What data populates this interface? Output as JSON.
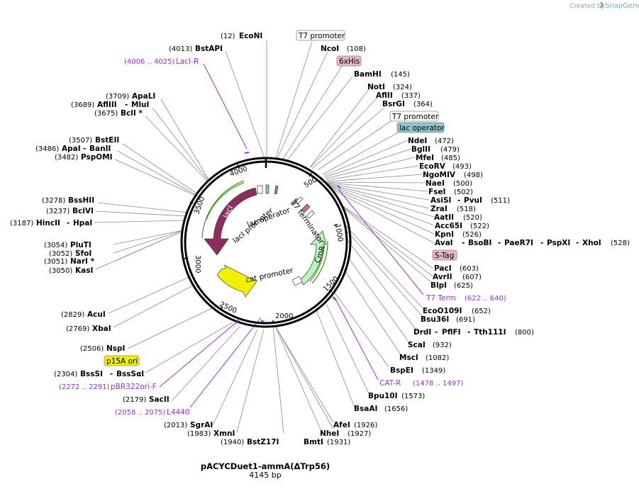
{
  "credit": {
    "created_by": "Created by",
    "brand": "SnapGene"
  },
  "plasmid": {
    "name": "pACYCDuet1-ammA(ΔTrp56)",
    "length": "4145 bp",
    "total_bp": 4145
  },
  "ticks": [
    "500",
    "1000",
    "1500",
    "2000",
    "2500",
    "3000",
    "3500",
    "4000"
  ],
  "features": {
    "lacI": "lacI",
    "cmr": "CmR",
    "lacI_promoter": "lacI promoter",
    "lac_operator": "lac operator",
    "t7_terminator": "T7 terminator",
    "cat_promoter": "cat promoter"
  },
  "boxed": {
    "t7_promoter_1": "T7 promoter",
    "his6": "6xHis",
    "t7_promoter_2": "T7 promoter",
    "lac_operator": "lac operator",
    "stag": "S-Tag",
    "p15a_ori": "p15A ori"
  },
  "enzymes": {
    "EcoNI": {
      "name": "EcoNI",
      "pos": "(12)"
    },
    "BstAPI": {
      "name": "BstAPI",
      "pos": "(4013)"
    },
    "ApaLI": {
      "name": "ApaLI",
      "pos": "(3709)"
    },
    "AflIII": {
      "name": "AflIII",
      "pos": "(3689)"
    },
    "MluI": {
      "name": "MluI"
    },
    "BclI": {
      "name": "BclI *",
      "pos": "(3675)"
    },
    "BstEII": {
      "name": "BstEII",
      "pos": "(3507)"
    },
    "ApaI": {
      "name": "ApaI",
      "pos": "(3486)"
    },
    "BanII": {
      "name": "BanII"
    },
    "PspOMI": {
      "name": "PspOMI",
      "pos": "(3482)"
    },
    "BssHII": {
      "name": "BssHII",
      "pos": "(3278)"
    },
    "BciVI": {
      "name": "BciVI",
      "pos": "(3237)"
    },
    "HincII": {
      "name": "HincII",
      "pos": "(3187)"
    },
    "HpaI": {
      "name": "HpaI"
    },
    "PluTI": {
      "name": "PluTI",
      "pos": "(3054)"
    },
    "SfoI": {
      "name": "SfoI",
      "pos": "(3052)"
    },
    "NarI": {
      "name": "NarI *",
      "pos": "(3051)"
    },
    "KasI": {
      "name": "KasI",
      "pos": "(3050)"
    },
    "AcuI": {
      "name": "AcuI",
      "pos": "(2829)"
    },
    "XbaI": {
      "name": "XbaI",
      "pos": "(2769)"
    },
    "NspI": {
      "name": "NspI",
      "pos": "(2506)"
    },
    "BssSI": {
      "name": "BssSI",
      "pos": "(2304)"
    },
    "BssSaI": {
      "name": "BssSαI"
    },
    "SacII": {
      "name": "SacII",
      "pos": "(2179)"
    },
    "SgrAI": {
      "name": "SgrAI",
      "pos": "(2013)"
    },
    "XmnI": {
      "name": "XmnI",
      "pos": "(1983)"
    },
    "BstZ17I": {
      "name": "BstZ17I",
      "pos": "(1940)"
    },
    "BmtI": {
      "name": "BmtI",
      "pos": "(1931)"
    },
    "NheI": {
      "name": "NheI",
      "pos": "(1927)"
    },
    "AfeI": {
      "name": "AfeI",
      "pos": "(1926)"
    },
    "BsaAI": {
      "name": "BsaAI",
      "pos": "(1656)"
    },
    "Bpu10I": {
      "name": "Bpu10I",
      "pos": "(1573)"
    },
    "BspEI": {
      "name": "BspEI",
      "pos": "(1349)"
    },
    "MscI": {
      "name": "MscI",
      "pos": "(1082)"
    },
    "ScaI": {
      "name": "ScaI",
      "pos": "(932)"
    },
    "DrdI": {
      "name": "DrdI"
    },
    "PflFI": {
      "name": "PflFI"
    },
    "Tth111I": {
      "name": "Tth111I",
      "pos": "(800)"
    },
    "Bsu36I": {
      "name": "Bsu36I",
      "pos": "(691)"
    },
    "EcoO109I": {
      "name": "EcoO109I",
      "pos": "(652)"
    },
    "BlpI": {
      "name": "BlpI",
      "pos": "(625)"
    },
    "AvrII": {
      "name": "AvrII",
      "pos": "(607)"
    },
    "PacI": {
      "name": "PacI",
      "pos": "(603)"
    },
    "AvaI": {
      "name": "AvaI"
    },
    "BsoBI": {
      "name": "BsoBI"
    },
    "PaeR7I": {
      "name": "PaeR7I"
    },
    "PspXI": {
      "name": "PspXI"
    },
    "XhoI": {
      "name": "XhoI",
      "pos": "(528)"
    },
    "KpnI": {
      "name": "KpnI",
      "pos": "(526)"
    },
    "Acc65I": {
      "name": "Acc65I",
      "pos": "(522)"
    },
    "AatII": {
      "name": "AatII",
      "pos": "(520)"
    },
    "ZraI": {
      "name": "ZraI",
      "pos": "(518)"
    },
    "AsiSI": {
      "name": "AsiSI"
    },
    "PvuI": {
      "name": "PvuI",
      "pos": "(511)"
    },
    "FseI": {
      "name": "FseI",
      "pos": "(502)"
    },
    "NaeI": {
      "name": "NaeI",
      "pos": "(500)"
    },
    "NgoMIV": {
      "name": "NgoMIV",
      "pos": "(498)"
    },
    "EcoRV": {
      "name": "EcoRV",
      "pos": "(493)"
    },
    "MfeI": {
      "name": "MfeI",
      "pos": "(485)"
    },
    "BglII": {
      "name": "BglII",
      "pos": "(479)"
    },
    "NdeI": {
      "name": "NdeI",
      "pos": "(472)"
    },
    "BsrGI": {
      "name": "BsrGI",
      "pos": "(364)"
    },
    "AflII": {
      "name": "AflII",
      "pos": "(337)"
    },
    "NotI": {
      "name": "NotI",
      "pos": "(324)"
    },
    "BamHI": {
      "name": "BamHI",
      "pos": "(145)"
    },
    "NcoI": {
      "name": "NcoI",
      "pos": "(108)"
    }
  },
  "primers": {
    "LacIR": {
      "name": "LacI-R",
      "range": "(4006 .. 4025)"
    },
    "T7Term": {
      "name": "T7 Term",
      "range": "(622 .. 640)"
    },
    "CATR": {
      "name": "CAT-R",
      "range": "(1478 .. 1497)"
    },
    "pBR322": {
      "name": "pBR322ori-F",
      "range": "(2272 .. 2291)"
    },
    "L4440": {
      "name": "L4440",
      "range": "(2058 .. 2075)"
    }
  }
}
